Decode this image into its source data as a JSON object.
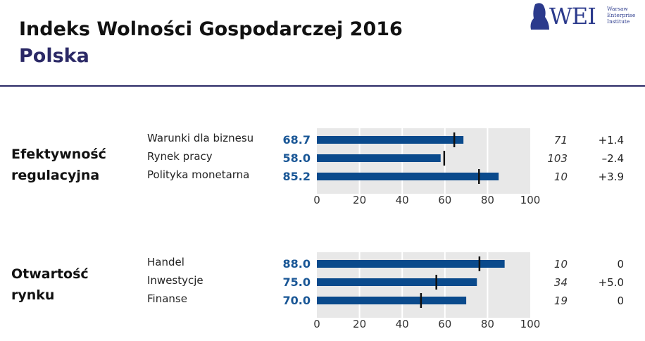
{
  "header": {
    "title": "Indeks Wolności Gospodarczej 2016",
    "subtitle": "Polska",
    "logo_text": "WEI",
    "logo_sub": [
      "Warsaw",
      "Enterprise",
      "Institute"
    ]
  },
  "colors": {
    "bar": "#0a4a8c",
    "marker": "#111111",
    "plot_bg": "#e8e8e8",
    "value_label": "#1a5796"
  },
  "chart_data": [
    {
      "type": "bar",
      "orientation": "horizontal",
      "group": "Efektywność regulacyjna",
      "categories": [
        "Warunki dla biznesu",
        "Rynek pracy",
        "Polityka monetarna"
      ],
      "values": [
        68.7,
        58.0,
        85.2
      ],
      "value_labels": [
        "68.7",
        "58.0",
        "85.2"
      ],
      "markers": [
        64.4,
        59.7,
        76.0
      ],
      "ranks": [
        "71",
        "103",
        "10"
      ],
      "changes": [
        "+1.4",
        "–2.4",
        "+3.9"
      ],
      "xlim": [
        0,
        100
      ],
      "xticks": [
        "0",
        "20",
        "40",
        "60",
        "80",
        "100"
      ],
      "grid": true
    },
    {
      "type": "bar",
      "orientation": "horizontal",
      "group": "Otwartość rynku",
      "categories": [
        "Handel",
        "Inwestycje",
        "Finanse"
      ],
      "values": [
        88.0,
        75.0,
        70.0
      ],
      "value_labels": [
        "88.0",
        "75.0",
        "70.0"
      ],
      "markers": [
        76.2,
        56.0,
        48.8
      ],
      "ranks": [
        "10",
        "34",
        "19"
      ],
      "changes": [
        "0",
        "+5.0",
        "0"
      ],
      "xlim": [
        0,
        100
      ],
      "xticks": [
        "0",
        "20",
        "40",
        "60",
        "80",
        "100"
      ],
      "grid": true
    }
  ]
}
